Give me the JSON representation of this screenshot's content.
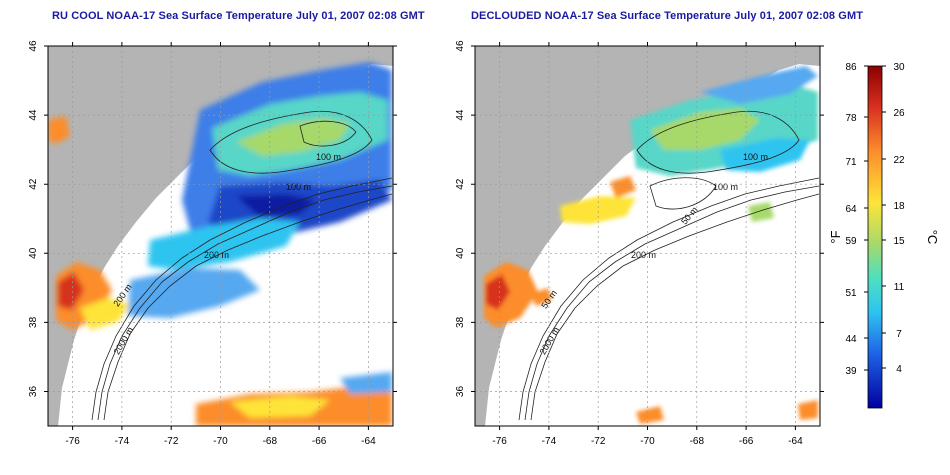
{
  "panels": [
    {
      "title": "RU COOL NOAA-17 Sea Surface Temperature July 01, 2007 02:08 GMT",
      "contour_labels": [
        "100 m",
        "100 m",
        "200 m",
        "200 m",
        "2000 m"
      ]
    },
    {
      "title": "DECLOUDED NOAA-17 Sea Surface Temperature July 01, 2007 02:08 GMT",
      "contour_labels": [
        "100 m",
        "100 m",
        "50 m",
        "200 m",
        "50 m",
        "2000 m"
      ]
    }
  ],
  "axes": {
    "x_ticks": [
      "-76",
      "-74",
      "-72",
      "-70",
      "-68",
      "-66",
      "-64"
    ],
    "y_ticks": [
      "46",
      "44",
      "42",
      "40",
      "38",
      "36"
    ],
    "lon_range": [
      -77,
      -63
    ],
    "lat_range": [
      35,
      46
    ]
  },
  "colorbar": {
    "fahrenheit_ticks": [
      "86",
      "78",
      "71",
      "64",
      "59",
      "51",
      "44",
      "39"
    ],
    "celsius_ticks": [
      "30",
      "26",
      "22",
      "18",
      "15",
      "11",
      "7",
      "4"
    ],
    "fahrenheit_unit": "°F",
    "celsius_unit": "°C",
    "colors": [
      "#8b0000",
      "#d7301f",
      "#fc8d2b",
      "#fee439",
      "#a6d96a",
      "#4ee0c0",
      "#2ec4f0",
      "#1e64e6",
      "#0000a0"
    ]
  },
  "colors": {
    "land": "#b4b4b4",
    "cloud": "#ffffff",
    "title": "#1a1aa0"
  }
}
